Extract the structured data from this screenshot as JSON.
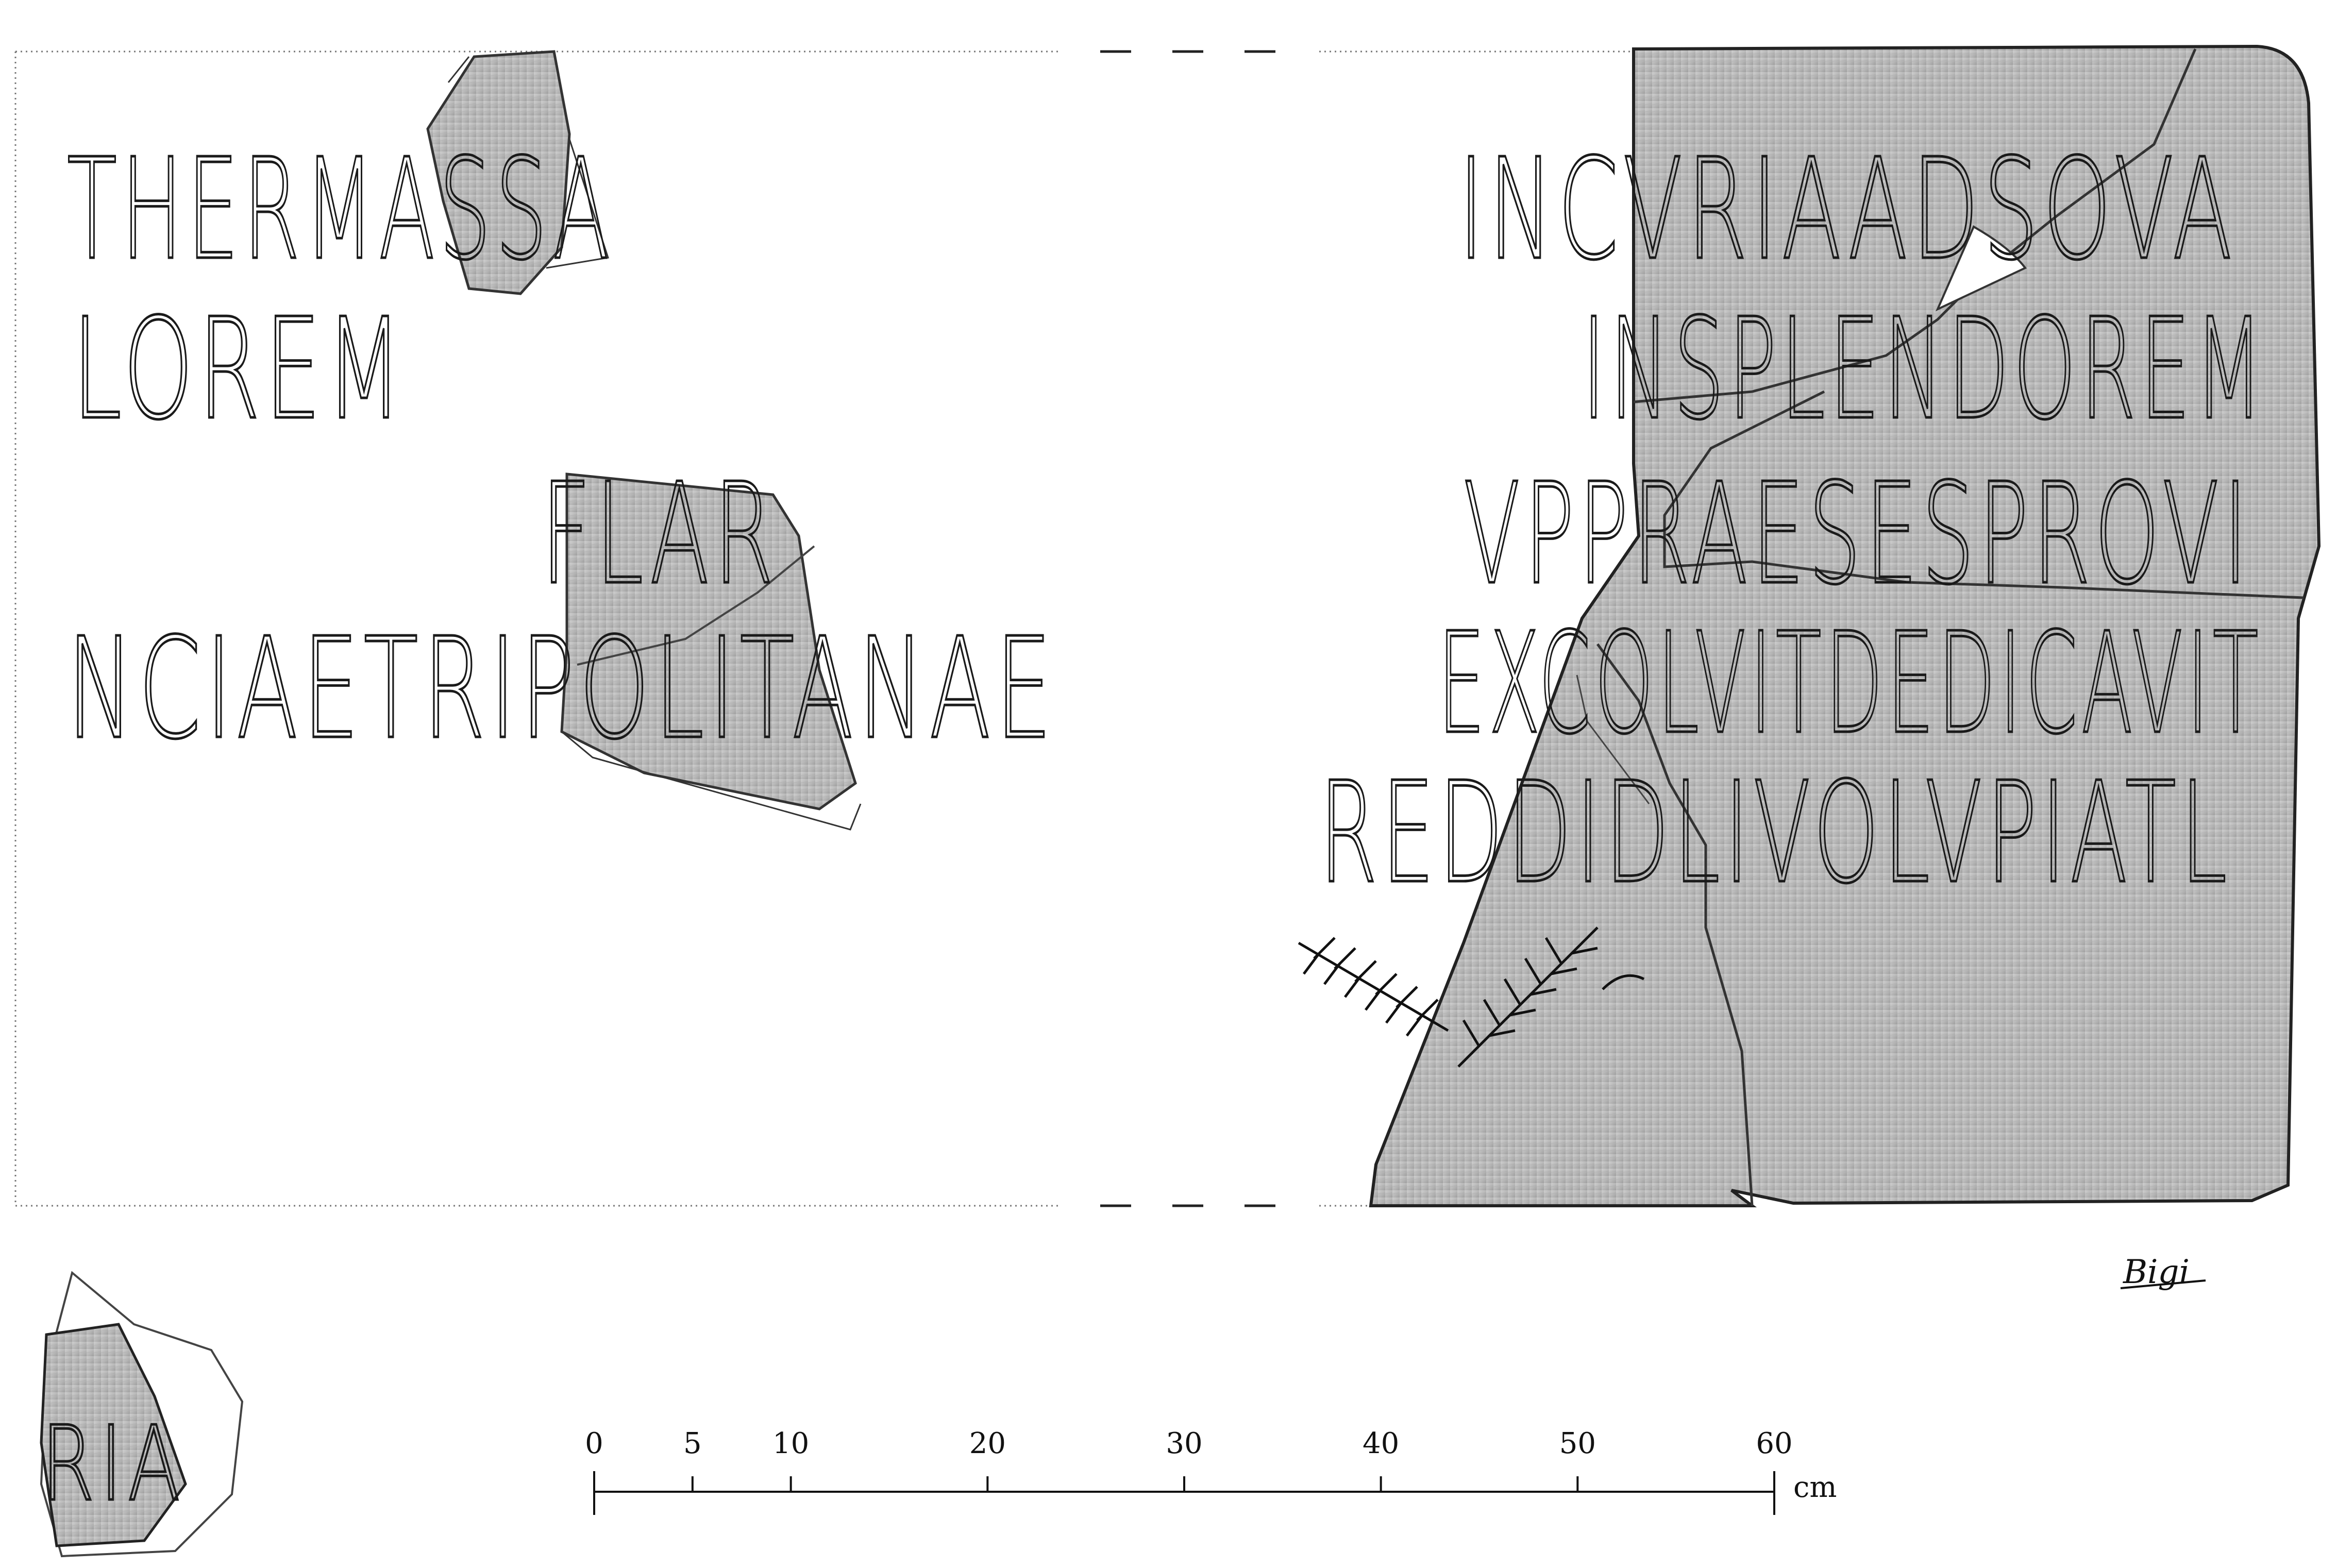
{
  "inscription": {
    "left_lines": [
      "THERMASSA",
      "LOREM",
      "FLAR",
      "NCIAETRIPOLITANAE"
    ],
    "right_lines": [
      "INCVRIAADSOVA",
      "INSPLENDOREM",
      "VPPRAESESPROVI",
      "EXCOLVITDEDICAVIT",
      "REDDIDLIVOLVPIATL"
    ],
    "loose_fragment_text": "RIA"
  },
  "scale_bar": {
    "ticks": [
      "0",
      "5",
      "10",
      "20",
      "30",
      "40",
      "50",
      "60"
    ],
    "unit": "cm"
  },
  "signature": "Bigi",
  "colors": {
    "stone": "#bdbdbd",
    "stone_dark": "#8a8a8a",
    "ink": "#111111",
    "frame": "#777777"
  }
}
